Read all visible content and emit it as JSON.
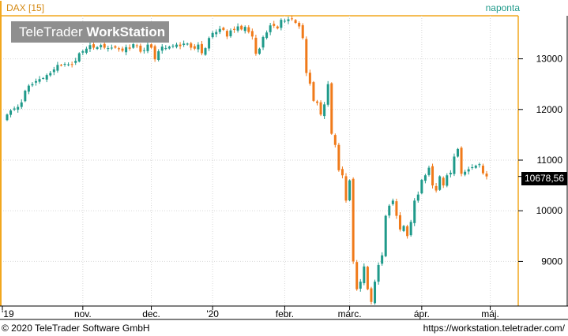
{
  "header": {
    "instrument": "DAX [15]",
    "period": "naponta"
  },
  "watermark": {
    "brand_light": "TeleTrader",
    "brand_bold": "WorkStation"
  },
  "footer": {
    "copyright": "© 2020 TeleTrader Software GmbH",
    "url": "https://workstation.teletrader.com/"
  },
  "colors": {
    "up": "#1f9a8a",
    "down": "#f07a1a",
    "axis_accent": "#f2a71e",
    "grid": "#d7d7d7",
    "price_tag_bg": "#000000"
  },
  "chart_data": {
    "type": "candlestick",
    "last_price_label": "10678,56",
    "y_axis": {
      "position": "right",
      "ticks": [
        9000,
        10000,
        11000,
        12000,
        13000
      ],
      "tick_labels": [
        "9000",
        "10000",
        "11000",
        "12000",
        "13000"
      ],
      "range": [
        8150,
        13850
      ]
    },
    "x_axis": {
      "labels": [
        "'19",
        "nov.",
        "dec.",
        "'20",
        "febr.",
        "márc.",
        "ápr.",
        "máj."
      ],
      "label_positions": [
        0,
        21,
        40,
        57,
        77,
        95,
        115,
        134
      ]
    },
    "grid": true,
    "closes": [
      11900,
      11980,
      12020,
      12050,
      12140,
      12370,
      12470,
      12500,
      12560,
      12600,
      12620,
      12680,
      12720,
      12790,
      12880,
      12870,
      12900,
      12890,
      12890,
      12960,
      13110,
      13150,
      13200,
      13270,
      13220,
      13230,
      13270,
      13220,
      13210,
      13220,
      13220,
      13190,
      13160,
      13230,
      13200,
      13290,
      13260,
      13140,
      13170,
      13280,
      13220,
      12990,
      13150,
      13240,
      13210,
      13240,
      13260,
      13280,
      13250,
      13300,
      13300,
      13220,
      13200,
      13280,
      13110,
      13210,
      13410,
      13510,
      13530,
      13590,
      13570,
      13440,
      13560,
      13570,
      13640,
      13580,
      13630,
      13530,
      13440,
      13100,
      13200,
      13430,
      13520,
      13660,
      13650,
      13600,
      13770,
      13750,
      13780,
      13790,
      13710,
      13640,
      13410,
      12720,
      12510,
      12170,
      12130,
      11900,
      12100,
      12500,
      11520,
      11300,
      10800,
      10700,
      10200,
      10600,
      9000,
      8450,
      8600,
      8900,
      8450,
      8200,
      8600,
      8930,
      9120,
      9900,
      10100,
      10200,
      9900,
      9630,
      9700,
      9500,
      9780,
      10200,
      10320,
      10610,
      10700,
      10850,
      10500,
      10400,
      10680,
      10500,
      10700,
      10750,
      11070,
      11220,
      10730,
      10770,
      10820,
      10860,
      10890,
      10920,
      10740,
      10678
    ]
  }
}
